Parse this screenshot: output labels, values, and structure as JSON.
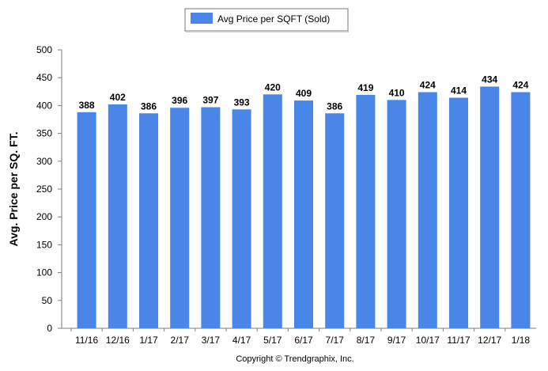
{
  "chart_data": {
    "type": "bar",
    "categories": [
      "11/16",
      "12/16",
      "1/17",
      "2/17",
      "3/17",
      "4/17",
      "5/17",
      "6/17",
      "7/17",
      "8/17",
      "9/17",
      "10/17",
      "11/17",
      "12/17",
      "1/18"
    ],
    "series": [
      {
        "name": "Avg Price per SQFT (Sold)",
        "values": [
          388,
          402,
          386,
          396,
          397,
          393,
          420,
          409,
          386,
          419,
          410,
          424,
          414,
          434,
          424
        ],
        "color": "#4a86e8"
      }
    ],
    "data_labels": [
      "388",
      "402",
      "386",
      "396",
      "397",
      "393",
      "420",
      "409",
      "386",
      "419",
      "410",
      "424",
      "414",
      "434",
      "424"
    ],
    "yticks": [
      "0",
      "50",
      "100",
      "150",
      "200",
      "250",
      "300",
      "350",
      "400",
      "450",
      "500"
    ],
    "ylim": [
      0,
      500
    ],
    "ylabel": "Avg. Price per SQ. FT.",
    "xlabel": "",
    "legend_placement": "top-center",
    "grid": false,
    "footer": "Copyright © Trendgraphix, Inc."
  }
}
